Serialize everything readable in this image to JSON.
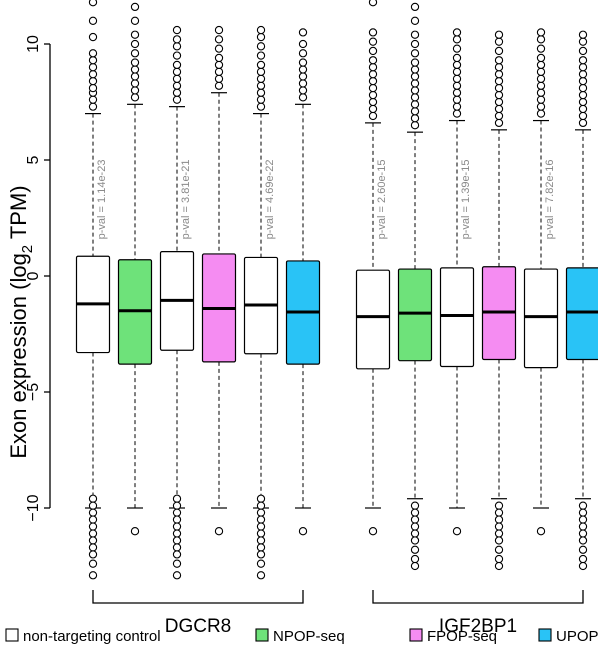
{
  "chart_data": {
    "type": "boxplot",
    "ylabel": "Exon expression (log2 TPM)",
    "ylabel_main": "Exon expression (log",
    "ylabel_sub": "2",
    "ylabel_tail": " TPM)",
    "ylim": [
      -10,
      10
    ],
    "yticks": [
      -10,
      -5,
      0,
      5,
      10
    ],
    "ytick_labels": [
      "−10",
      "−5",
      "0",
      "5",
      "10"
    ],
    "groups": [
      {
        "name": "DGCR8",
        "pvalues": [
          "p-val = 1.14e-23",
          "p-val = 3.81e-21",
          "p-val = 4.69e-22"
        ],
        "boxes": [
          {
            "condition": "non-targeting control",
            "color": "#ffffff",
            "whisker_low": -10,
            "q1": -3.3,
            "median": -1.2,
            "q3": 0.85,
            "whisker_high": 7.0,
            "outliers_high": [
              7.3,
              7.6,
              7.9,
              8.1,
              8.4,
              8.7,
              9.0,
              9.3,
              9.6,
              10.3,
              11.0,
              11.8
            ],
            "outliers_low": [
              -9.6,
              -9.9,
              -10.2,
              -10.5,
              -10.8,
              -11.1,
              -11.4,
              -11.7,
              -12.0,
              -12.4,
              -12.9
            ]
          },
          {
            "condition": "NPOP-seq",
            "color": "#6ee27a",
            "whisker_low": -10,
            "q1": -3.8,
            "median": -1.5,
            "q3": 0.7,
            "whisker_high": 7.4,
            "outliers_high": [
              7.7,
              8.0,
              8.3,
              8.6,
              8.9,
              9.2,
              9.6,
              10.0,
              10.4,
              11.0,
              11.6
            ],
            "outliers_low": [
              -11.0
            ]
          },
          {
            "condition": "non-targeting control",
            "color": "#ffffff",
            "whisker_low": -10,
            "q1": -3.2,
            "median": -1.05,
            "q3": 1.05,
            "whisker_high": 7.3,
            "outliers_high": [
              7.6,
              7.9,
              8.2,
              8.5,
              8.8,
              9.1,
              9.5,
              9.9,
              10.2,
              10.6
            ],
            "outliers_low": [
              -9.6,
              -9.9,
              -10.2,
              -10.5,
              -10.8,
              -11.1,
              -11.4,
              -11.7,
              -12.0,
              -12.4,
              -12.9
            ]
          },
          {
            "condition": "FPOP-seq",
            "color": "#f58cf2",
            "whisker_low": -10,
            "q1": -3.7,
            "median": -1.4,
            "q3": 0.95,
            "whisker_high": 7.9,
            "outliers_high": [
              8.2,
              8.5,
              8.8,
              9.1,
              9.4,
              9.8,
              10.2,
              10.6
            ],
            "outliers_low": [
              -11.0
            ]
          },
          {
            "condition": "non-targeting control",
            "color": "#ffffff",
            "whisker_low": -10,
            "q1": -3.35,
            "median": -1.25,
            "q3": 0.8,
            "whisker_high": 7.0,
            "outliers_high": [
              7.3,
              7.6,
              7.9,
              8.2,
              8.5,
              8.8,
              9.1,
              9.5,
              9.9,
              10.3,
              10.6
            ],
            "outliers_low": [
              -9.6,
              -9.9,
              -10.2,
              -10.5,
              -10.8,
              -11.1,
              -11.4,
              -11.7,
              -12.0,
              -12.4,
              -12.9
            ]
          },
          {
            "condition": "UPOP-seq",
            "color": "#29c3f6",
            "whisker_low": -10,
            "q1": -3.8,
            "median": -1.55,
            "q3": 0.65,
            "whisker_high": 7.4,
            "outliers_high": [
              7.7,
              8.0,
              8.3,
              8.6,
              8.9,
              9.2,
              9.6,
              10.0,
              10.5
            ],
            "outliers_low": [
              -11.0
            ]
          }
        ]
      },
      {
        "name": "IGF2BP1",
        "pvalues": [
          "p-val = 2.60e-15",
          "p-val = 1.39e-15",
          "p-val = 7.82e-16"
        ],
        "boxes": [
          {
            "condition": "non-targeting control",
            "color": "#ffffff",
            "whisker_low": -10,
            "q1": -4.0,
            "median": -1.75,
            "q3": 0.25,
            "whisker_high": 6.6,
            "outliers_high": [
              6.9,
              7.2,
              7.5,
              7.8,
              8.1,
              8.4,
              8.7,
              9.0,
              9.3,
              9.7,
              10.1,
              10.5,
              11.8
            ],
            "outliers_low": [
              -11.0
            ]
          },
          {
            "condition": "NPOP-seq",
            "color": "#6ee27a",
            "whisker_low": -9.6,
            "q1": -3.65,
            "median": -1.6,
            "q3": 0.3,
            "whisker_high": 6.2,
            "outliers_high": [
              6.5,
              6.8,
              7.1,
              7.4,
              7.7,
              8.0,
              8.3,
              8.6,
              8.9,
              9.2,
              9.6,
              10.0,
              10.4,
              11.0,
              11.6
            ],
            "outliers_low": [
              -9.9,
              -10.2,
              -10.5,
              -10.8,
              -11.1,
              -11.4,
              -11.8,
              -12.2,
              -12.5
            ]
          },
          {
            "condition": "non-targeting control",
            "color": "#ffffff",
            "whisker_low": -10,
            "q1": -3.9,
            "median": -1.7,
            "q3": 0.35,
            "whisker_high": 6.7,
            "outliers_high": [
              7.0,
              7.3,
              7.6,
              7.9,
              8.2,
              8.5,
              8.8,
              9.1,
              9.4,
              9.8,
              10.2,
              10.5
            ],
            "outliers_low": [
              -11.0
            ]
          },
          {
            "condition": "FPOP-seq",
            "color": "#f58cf2",
            "whisker_low": -9.6,
            "q1": -3.6,
            "median": -1.55,
            "q3": 0.4,
            "whisker_high": 6.3,
            "outliers_high": [
              6.6,
              6.9,
              7.2,
              7.5,
              7.8,
              8.1,
              8.4,
              8.7,
              9.0,
              9.3,
              9.7,
              10.1,
              10.4
            ],
            "outliers_low": [
              -9.9,
              -10.2,
              -10.5,
              -10.8,
              -11.1,
              -11.4,
              -11.8,
              -12.2,
              -12.5
            ]
          },
          {
            "condition": "non-targeting control",
            "color": "#ffffff",
            "whisker_low": -10,
            "q1": -3.95,
            "median": -1.75,
            "q3": 0.3,
            "whisker_high": 6.7,
            "outliers_high": [
              7.0,
              7.3,
              7.6,
              7.9,
              8.2,
              8.5,
              8.8,
              9.1,
              9.4,
              9.8,
              10.2,
              10.5
            ],
            "outliers_low": [
              -11.0
            ]
          },
          {
            "condition": "UPOP-seq",
            "color": "#29c3f6",
            "whisker_low": -9.6,
            "q1": -3.6,
            "median": -1.55,
            "q3": 0.35,
            "whisker_high": 6.3,
            "outliers_high": [
              6.6,
              6.9,
              7.2,
              7.5,
              7.8,
              8.1,
              8.4,
              8.7,
              9.0,
              9.3,
              9.7,
              10.1,
              10.4
            ],
            "outliers_low": [
              -9.9,
              -10.2,
              -10.5,
              -10.8,
              -11.1,
              -11.4,
              -11.8,
              -12.2,
              -12.5
            ]
          }
        ]
      }
    ],
    "legend": {
      "placement": "bottom",
      "entries": [
        {
          "label": "non-targeting control",
          "color": "#ffffff"
        },
        {
          "label": "NPOP-seq",
          "color": "#6ee27a"
        },
        {
          "label": "FPOP-seq",
          "color": "#f58cf2"
        },
        {
          "label": "UPOP-seq",
          "color": "#29c3f6"
        }
      ]
    },
    "grid": false
  }
}
